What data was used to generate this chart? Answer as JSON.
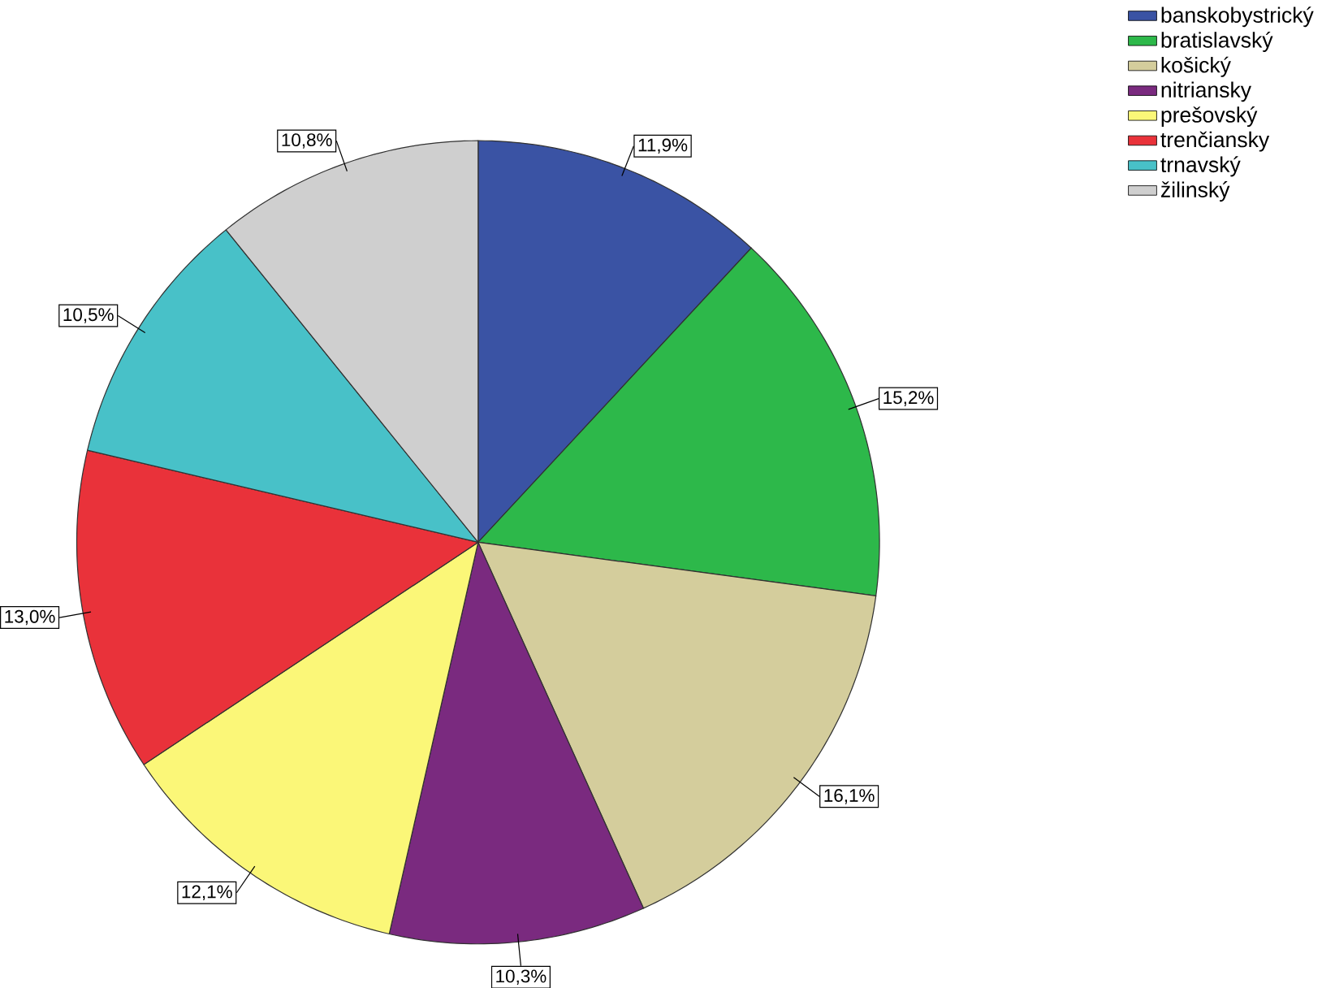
{
  "chart_data": {
    "type": "pie",
    "categories": [
      "banskobystrický",
      "bratislavský",
      "košický",
      "nitriansky",
      "prešovský",
      "trenčiansky",
      "trnavský",
      "žilinský"
    ],
    "values": [
      11.9,
      15.2,
      16.1,
      10.3,
      12.1,
      13.0,
      10.5,
      10.8
    ],
    "value_labels": [
      "11,9%",
      "15,2%",
      "16,1%",
      "10,3%",
      "12,1%",
      "13,0%",
      "10,5%",
      "10,8%"
    ],
    "colors": [
      "#3a53a4",
      "#2db84a",
      "#d4cd9c",
      "#7a2a7f",
      "#fbf778",
      "#e9323a",
      "#48c1c8",
      "#cfcfcf"
    ],
    "legend": "top right"
  }
}
